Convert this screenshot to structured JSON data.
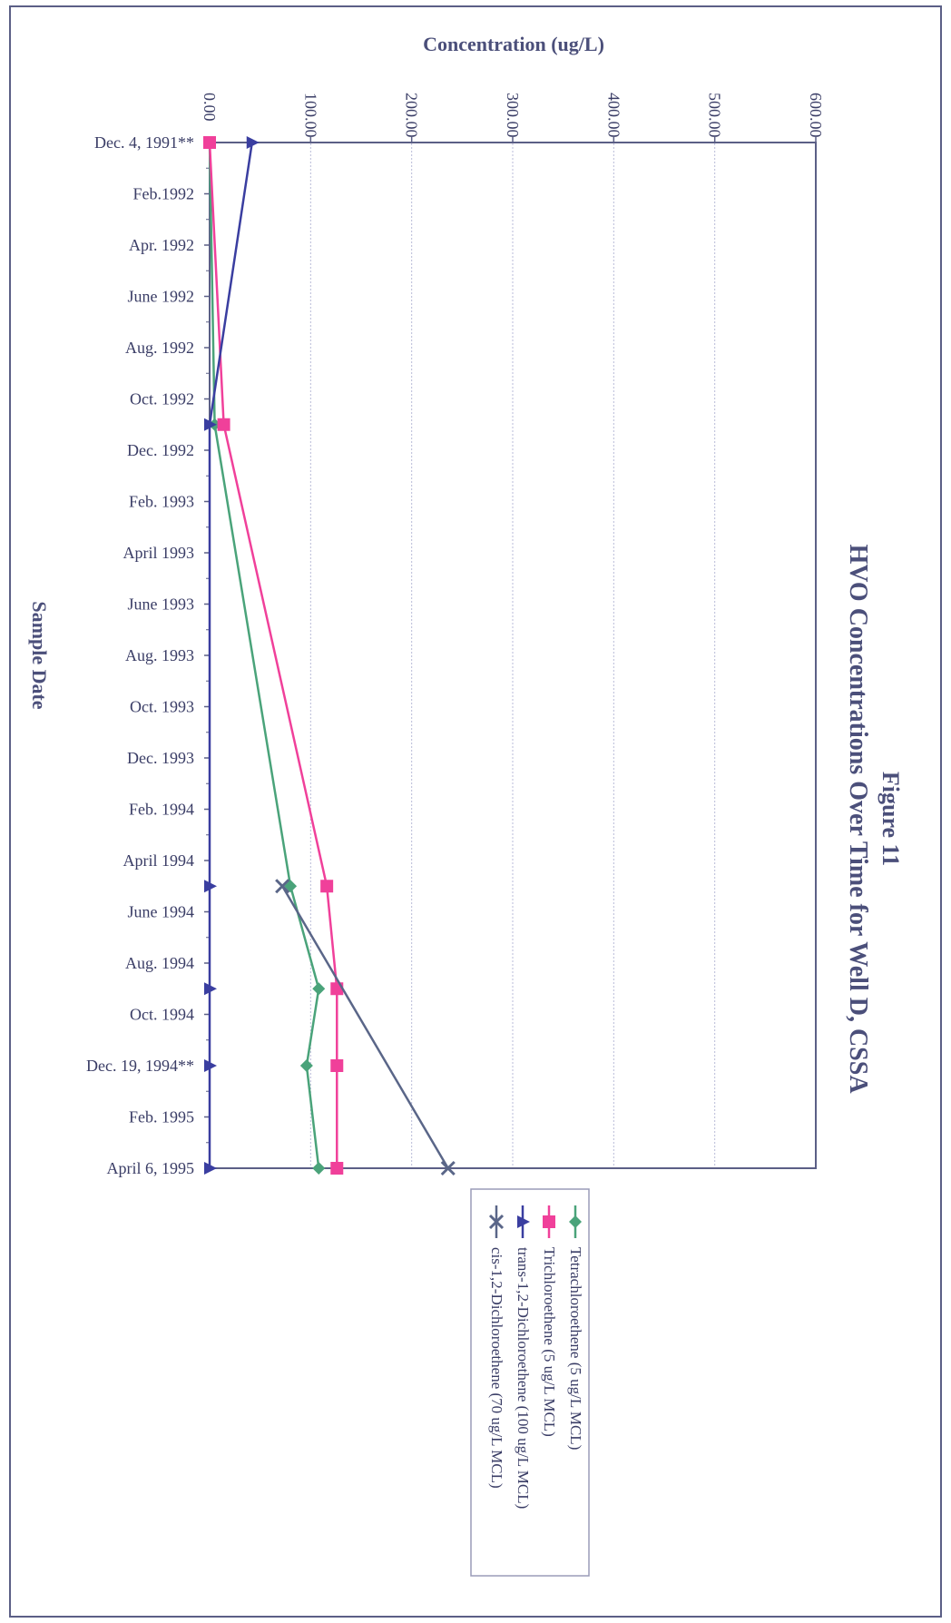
{
  "chart_data": {
    "type": "line",
    "orientation": "rotated-90-clockwise",
    "title_line1": "Figure 11",
    "title_line2": "HVO Concentrations Over Time for Well D, CSSA",
    "xlabel": "Sample Date",
    "ylabel": "Concentration (ug/L)",
    "ylim": [
      0,
      600
    ],
    "y_ticks": [
      "0.00",
      "100.00",
      "200.00",
      "300.00",
      "400.00",
      "500.00",
      "600.00"
    ],
    "x_tick_labels": [
      "Dec. 4, 1991**",
      "Feb.1992",
      "Apr. 1992",
      "June 1992",
      "Aug. 1992",
      "Oct. 1992",
      "Dec. 1992",
      "Feb. 1993",
      "April 1993",
      "June 1993",
      "Aug. 1993",
      "Oct. 1993",
      "Dec. 1993",
      "Feb. 1994",
      "April 1994",
      "June 1994",
      "Aug. 1994",
      "Oct. 1994",
      "Dec. 19, 1994**",
      "Feb. 1995",
      "April 6, 1995"
    ],
    "grid": "vertical gridlines at each concentration tick",
    "legend_position": "bottom",
    "series": [
      {
        "name": "Tetrachloroethene (5 ug/L MCL)",
        "color": "#4aa37a",
        "marker": "diamond",
        "x": [
          0,
          5.5,
          14.5,
          16.5,
          18,
          20
        ],
        "values": [
          0,
          5,
          80,
          108,
          96,
          108
        ]
      },
      {
        "name": "Trichloroethene (5 ug/L MCL)",
        "color": "#f0409a",
        "marker": "square",
        "x": [
          0,
          5.5,
          14.5,
          16.5,
          18,
          20
        ],
        "values": [
          0,
          14,
          116,
          126,
          126,
          126
        ]
      },
      {
        "name": "trans-1,2-Dichloroethene (100 ug/L MCL)",
        "color": "#3a3ea0",
        "marker": "triangle",
        "x": [
          0,
          5.5,
          14.5,
          16.5,
          18,
          20
        ],
        "values": [
          42,
          0,
          0,
          0,
          0,
          0
        ]
      },
      {
        "name": "cis-1,2-Dichloroethene (70 ug/L MCL)",
        "color": "#5a6688",
        "marker": "x",
        "x": [
          14.5,
          20
        ],
        "values": [
          72,
          236
        ]
      }
    ]
  }
}
